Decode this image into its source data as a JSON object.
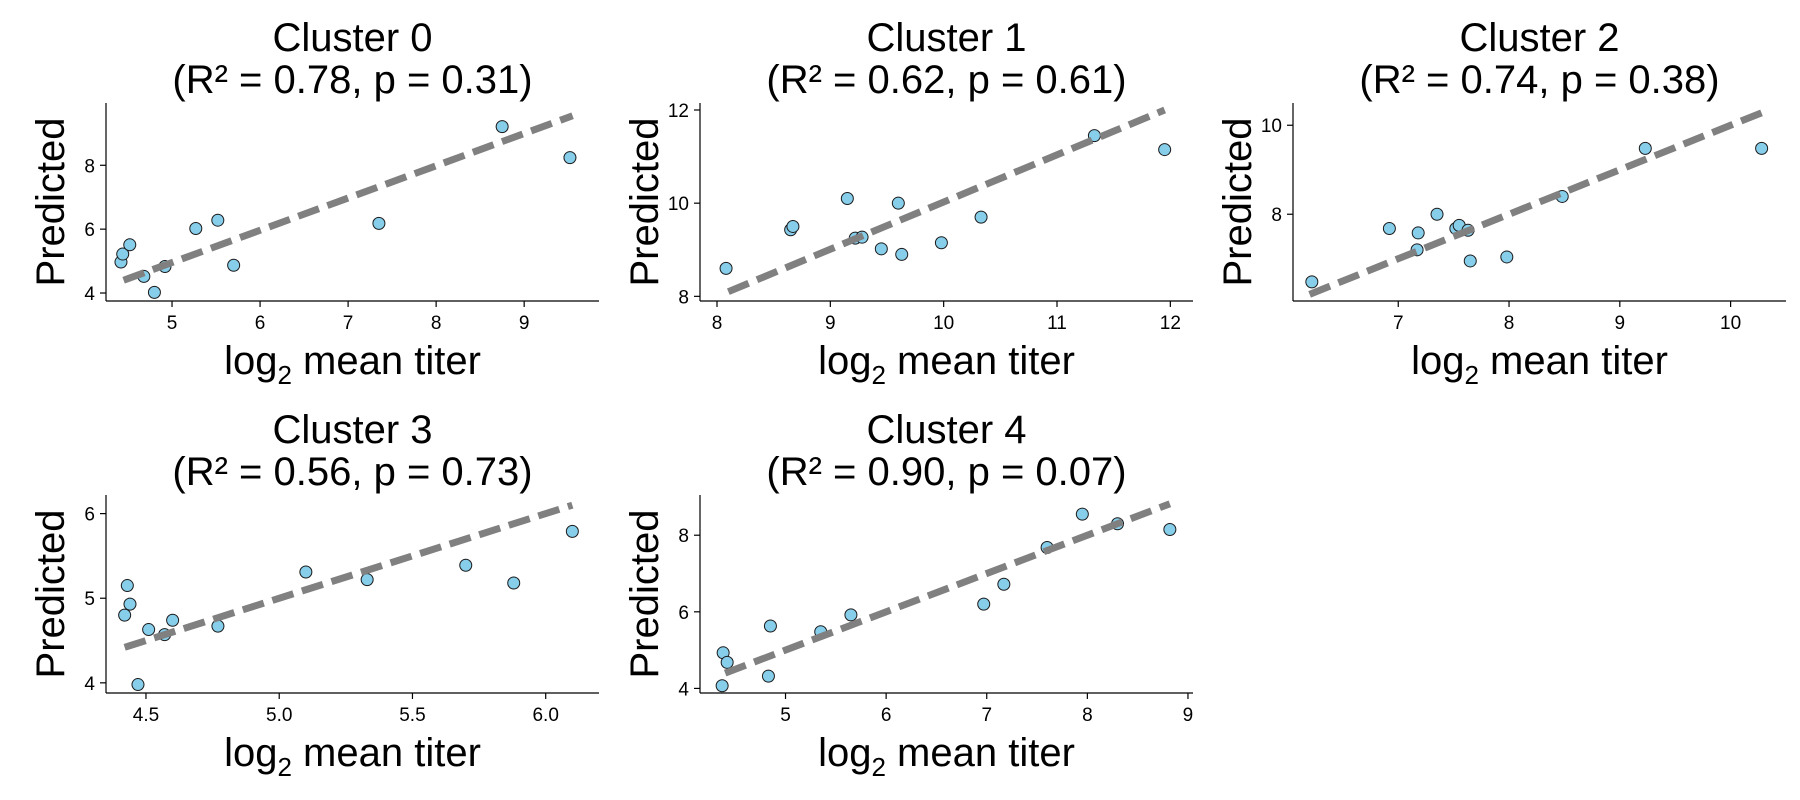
{
  "colors": {
    "point_fill": "#87ceeb",
    "point_edge": "#1a1a1a",
    "fit_line": "#808080",
    "axis": "#000000"
  },
  "chart_data": [
    {
      "type": "scatter",
      "title": "Cluster 0",
      "subtitle": "(R² = 0.78, p = 0.31)",
      "xlabel_main": "log",
      "xlabel_sub": "2",
      "xlabel_rest": " mean titer",
      "ylabel": "Predicted",
      "xlim": [
        4.25,
        9.85
      ],
      "ylim": [
        3.75,
        9.95
      ],
      "xticks": [
        5,
        6,
        7,
        8,
        9
      ],
      "yticks": [
        4,
        6,
        8
      ],
      "points": [
        [
          4.42,
          4.97
        ],
        [
          4.44,
          5.22
        ],
        [
          4.52,
          5.51
        ],
        [
          4.68,
          4.52
        ],
        [
          4.8,
          4.02
        ],
        [
          4.92,
          4.83
        ],
        [
          5.27,
          6.02
        ],
        [
          5.52,
          6.28
        ],
        [
          5.7,
          4.87
        ],
        [
          7.35,
          6.18
        ],
        [
          8.75,
          9.21
        ],
        [
          9.52,
          8.24
        ]
      ],
      "fit": [
        [
          4.45,
          4.4
        ],
        [
          9.55,
          9.55
        ]
      ],
      "grid": false
    },
    {
      "type": "scatter",
      "title": "Cluster 1",
      "subtitle": "(R² = 0.62, p = 0.61)",
      "xlabel_main": "log",
      "xlabel_sub": "2",
      "xlabel_rest": " mean titer",
      "ylabel": "Predicted",
      "xlim": [
        7.85,
        12.2
      ],
      "ylim": [
        7.9,
        12.15
      ],
      "xticks": [
        8,
        9,
        10,
        11,
        12
      ],
      "yticks": [
        8,
        10,
        12
      ],
      "points": [
        [
          8.08,
          8.6
        ],
        [
          8.65,
          9.43
        ],
        [
          8.67,
          9.5
        ],
        [
          9.15,
          10.1
        ],
        [
          9.22,
          9.25
        ],
        [
          9.28,
          9.27
        ],
        [
          9.45,
          9.02
        ],
        [
          9.6,
          10.0
        ],
        [
          9.63,
          8.9
        ],
        [
          9.98,
          9.15
        ],
        [
          10.33,
          9.7
        ],
        [
          11.33,
          11.45
        ],
        [
          11.95,
          11.15
        ]
      ],
      "fit": [
        [
          8.1,
          8.1
        ],
        [
          11.95,
          12.0
        ]
      ],
      "grid": false
    },
    {
      "type": "scatter",
      "title": "Cluster 2",
      "subtitle": "(R² = 0.74, p = 0.38)",
      "xlabel_main": "log",
      "xlabel_sub": "2",
      "xlabel_rest": " mean titer",
      "ylabel": "Predicted",
      "xlim": [
        6.05,
        10.5
      ],
      "ylim": [
        6.05,
        10.5
      ],
      "xticks": [
        7,
        8,
        9,
        10
      ],
      "yticks": [
        8,
        10
      ],
      "points": [
        [
          6.22,
          6.48
        ],
        [
          6.92,
          7.68
        ],
        [
          7.17,
          7.2
        ],
        [
          7.18,
          7.58
        ],
        [
          7.35,
          8.0
        ],
        [
          7.52,
          7.68
        ],
        [
          7.55,
          7.75
        ],
        [
          7.63,
          7.64
        ],
        [
          7.65,
          6.95
        ],
        [
          7.98,
          7.04
        ],
        [
          8.48,
          8.4
        ],
        [
          9.23,
          9.48
        ],
        [
          10.28,
          9.48
        ]
      ],
      "fit": [
        [
          6.2,
          6.2
        ],
        [
          10.3,
          10.3
        ]
      ],
      "grid": false
    },
    {
      "type": "scatter",
      "title": "Cluster 3",
      "subtitle": "(R² = 0.56, p = 0.73)",
      "xlabel_main": "log",
      "xlabel_sub": "2",
      "xlabel_rest": " mean titer",
      "ylabel": "Predicted",
      "xlim": [
        4.35,
        6.2
      ],
      "ylim": [
        3.88,
        6.22
      ],
      "xticks": [
        "4.5",
        "5.0",
        "5.5",
        "6.0"
      ],
      "yticks": [
        4,
        5,
        6
      ],
      "points": [
        [
          4.42,
          4.8
        ],
        [
          4.43,
          5.15
        ],
        [
          4.44,
          4.93
        ],
        [
          4.47,
          3.98
        ],
        [
          4.51,
          4.63
        ],
        [
          4.57,
          4.57
        ],
        [
          4.6,
          4.74
        ],
        [
          4.77,
          4.67
        ],
        [
          5.1,
          5.31
        ],
        [
          5.33,
          5.22
        ],
        [
          5.7,
          5.39
        ],
        [
          5.88,
          5.18
        ],
        [
          6.1,
          5.79
        ]
      ],
      "fit": [
        [
          4.42,
          4.42
        ],
        [
          6.1,
          6.1
        ]
      ],
      "grid": false
    },
    {
      "type": "scatter",
      "title": "Cluster 4",
      "subtitle": "(R² = 0.90, p = 0.07)",
      "xlabel_main": "log",
      "xlabel_sub": "2",
      "xlabel_rest": " mean titer",
      "ylabel": "Predicted",
      "xlim": [
        4.15,
        9.05
      ],
      "ylim": [
        3.88,
        9.05
      ],
      "xticks": [
        5,
        6,
        7,
        8,
        9
      ],
      "yticks": [
        4,
        6,
        8
      ],
      "points": [
        [
          4.37,
          4.07
        ],
        [
          4.38,
          4.93
        ],
        [
          4.42,
          4.68
        ],
        [
          4.83,
          4.32
        ],
        [
          4.85,
          5.63
        ],
        [
          5.35,
          5.48
        ],
        [
          5.65,
          5.92
        ],
        [
          6.97,
          6.2
        ],
        [
          7.17,
          6.72
        ],
        [
          7.6,
          7.68
        ],
        [
          7.95,
          8.55
        ],
        [
          8.3,
          8.3
        ],
        [
          8.82,
          8.15
        ]
      ],
      "fit": [
        [
          4.4,
          4.4
        ],
        [
          8.82,
          8.82
        ]
      ],
      "grid": false
    }
  ]
}
